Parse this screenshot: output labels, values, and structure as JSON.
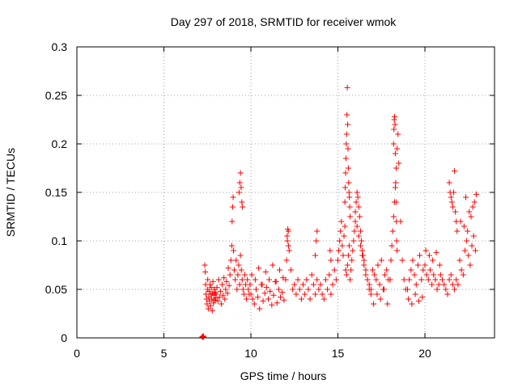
{
  "chart_data": {
    "type": "scatter",
    "title": "Day 297 of 2018, SRMTID for receiver wmok",
    "xlabel": "GPS time / hours",
    "ylabel": "SRMTID / TECUs",
    "xlim": [
      0,
      24
    ],
    "ylim": [
      0,
      0.3
    ],
    "x_ticks": [
      0,
      5,
      10,
      15,
      20
    ],
    "x_tick_labels": [
      "0",
      "5",
      "10",
      "15",
      "20"
    ],
    "y_ticks": [
      0,
      0.05,
      0.1,
      0.15,
      0.2,
      0.25,
      0.3
    ],
    "y_tick_labels": [
      "0",
      "0.05",
      "0.1",
      "0.15",
      "0.2",
      "0.25",
      "0.3"
    ],
    "grid": true,
    "marker": "+",
    "color": "#ff0000",
    "series": [
      {
        "x": [
          7.2,
          7.22,
          7.24,
          7.26,
          7.28,
          7.35,
          7.38,
          7.4,
          7.42,
          7.45,
          7.48,
          7.5,
          7.52,
          7.55,
          7.58,
          7.6,
          7.62,
          7.65,
          7.68,
          7.7,
          7.72,
          7.75,
          7.78,
          7.8,
          7.82,
          7.85,
          7.88,
          7.9,
          7.92,
          7.95,
          7.98,
          8.0,
          8.05,
          8.1,
          8.15,
          8.2,
          8.25,
          8.3,
          8.35,
          8.4,
          8.45,
          8.5,
          8.55,
          8.6,
          8.65,
          8.7,
          8.75,
          8.8,
          8.85,
          8.9,
          8.92,
          8.95,
          8.98,
          9.0,
          9.05,
          9.1,
          9.15,
          9.2,
          9.25,
          9.3,
          9.35,
          9.4,
          9.45,
          9.5,
          9.55,
          9.6,
          9.65,
          9.7,
          9.75,
          9.8,
          9.85,
          9.9,
          9.95,
          9.32,
          9.36,
          9.4,
          9.44,
          9.48,
          9.52,
          10.0,
          10.1,
          10.2,
          10.3,
          10.4,
          10.5,
          10.6,
          10.7,
          10.8,
          10.9,
          11.0,
          11.1,
          11.2,
          11.3,
          11.4,
          11.5,
          11.6,
          11.7,
          11.8,
          11.9,
          10.05,
          10.25,
          10.45,
          10.65,
          10.85,
          11.05,
          11.25,
          11.45,
          11.65,
          11.85,
          12.0,
          12.05,
          12.1,
          12.15,
          12.2,
          12.3,
          12.4,
          12.5,
          12.6,
          12.7,
          12.8,
          12.9,
          13.0,
          13.1,
          13.2,
          13.3,
          13.4,
          13.5,
          13.6,
          13.7,
          13.8,
          13.9,
          12.08,
          12.12,
          12.16,
          14.0,
          14.1,
          14.2,
          14.3,
          14.4,
          14.5,
          14.6,
          14.7,
          14.8,
          14.9,
          13.7,
          13.75,
          13.8,
          14.55,
          14.6,
          15.0,
          15.05,
          15.1,
          15.15,
          15.2,
          15.25,
          15.3,
          15.35,
          15.4,
          15.45,
          15.5,
          15.55,
          15.6,
          15.65,
          15.7,
          15.75,
          15.8,
          15.85,
          15.9,
          15.95,
          15.4,
          15.42,
          15.44,
          15.46,
          15.48,
          15.5,
          15.52,
          15.54,
          15.56,
          15.58,
          15.6,
          15.62,
          15.64,
          15.66,
          15.68,
          15.7,
          16.0,
          16.05,
          16.1,
          16.15,
          16.2,
          16.25,
          16.3,
          16.35,
          16.4,
          16.45,
          16.5,
          16.6,
          16.7,
          16.8,
          16.9,
          16.0,
          16.1,
          16.2,
          16.3,
          16.4,
          16.5,
          16.6,
          16.7,
          16.8,
          16.9,
          17.0,
          17.1,
          17.2,
          17.3,
          17.4,
          17.5,
          17.6,
          17.7,
          17.8,
          17.9,
          17.05,
          17.25,
          17.45,
          17.65,
          17.85,
          18.0,
          18.05,
          18.1,
          18.15,
          18.2,
          18.25,
          18.3,
          18.35,
          18.4,
          18.45,
          18.5,
          18.6,
          18.7,
          18.8,
          18.9,
          18.2,
          18.22,
          18.24,
          18.26,
          18.28,
          18.3,
          18.32,
          18.34,
          18.36,
          18.38,
          18.4,
          19.0,
          19.1,
          19.2,
          19.3,
          19.4,
          19.5,
          19.6,
          19.7,
          19.8,
          19.9,
          19.05,
          19.25,
          19.45,
          19.65,
          19.85,
          20.0,
          20.1,
          20.2,
          20.3,
          20.4,
          20.5,
          20.6,
          20.7,
          20.8,
          20.9,
          20.05,
          20.25,
          20.45,
          20.65,
          20.85,
          21.0,
          21.1,
          21.2,
          21.3,
          21.4,
          21.5,
          21.6,
          21.7,
          21.8,
          21.9,
          21.4,
          21.45,
          21.5,
          21.55,
          21.6,
          21.65,
          21.7,
          21.75,
          21.8,
          21.85,
          22.0,
          22.1,
          22.2,
          22.3,
          22.4,
          22.5,
          22.6,
          22.7,
          22.8,
          22.9,
          22.05,
          22.25,
          22.45,
          22.65,
          22.85,
          22.35,
          22.55,
          22.75,
          22.95
        ],
        "y": [
          0.001,
          0.001,
          0.001,
          0.002,
          0.001,
          0.075,
          0.068,
          0.055,
          0.045,
          0.04,
          0.035,
          0.05,
          0.06,
          0.03,
          0.042,
          0.048,
          0.038,
          0.055,
          0.033,
          0.045,
          0.052,
          0.04,
          0.028,
          0.046,
          0.058,
          0.036,
          0.044,
          0.05,
          0.039,
          0.047,
          0.041,
          0.045,
          0.052,
          0.038,
          0.06,
          0.042,
          0.048,
          0.035,
          0.055,
          0.044,
          0.062,
          0.04,
          0.05,
          0.058,
          0.046,
          0.072,
          0.054,
          0.065,
          0.08,
          0.095,
          0.12,
          0.135,
          0.145,
          0.09,
          0.07,
          0.06,
          0.08,
          0.05,
          0.065,
          0.075,
          0.055,
          0.085,
          0.07,
          0.06,
          0.05,
          0.045,
          0.065,
          0.055,
          0.04,
          0.06,
          0.05,
          0.045,
          0.055,
          0.15,
          0.16,
          0.17,
          0.155,
          0.14,
          0.135,
          0.045,
          0.04,
          0.035,
          0.05,
          0.042,
          0.03,
          0.055,
          0.038,
          0.046,
          0.052,
          0.04,
          0.048,
          0.034,
          0.044,
          0.058,
          0.036,
          0.05,
          0.042,
          0.047,
          0.039,
          0.065,
          0.06,
          0.072,
          0.055,
          0.068,
          0.06,
          0.075,
          0.058,
          0.07,
          0.062,
          0.06,
          0.08,
          0.1,
          0.11,
          0.09,
          0.07,
          0.05,
          0.055,
          0.045,
          0.06,
          0.05,
          0.04,
          0.055,
          0.045,
          0.06,
          0.05,
          0.04,
          0.065,
          0.055,
          0.045,
          0.06,
          0.05,
          0.105,
          0.112,
          0.095,
          0.055,
          0.045,
          0.04,
          0.06,
          0.05,
          0.065,
          0.045,
          0.055,
          0.07,
          0.06,
          0.085,
          0.1,
          0.11,
          0.09,
          0.08,
          0.08,
          0.09,
          0.1,
          0.11,
          0.12,
          0.095,
          0.085,
          0.105,
          0.115,
          0.07,
          0.065,
          0.075,
          0.085,
          0.095,
          0.06,
          0.07,
          0.08,
          0.09,
          0.1,
          0.11,
          0.14,
          0.155,
          0.17,
          0.185,
          0.2,
          0.21,
          0.23,
          0.258,
          0.22,
          0.195,
          0.175,
          0.16,
          0.15,
          0.145,
          0.135,
          0.125,
          0.13,
          0.14,
          0.15,
          0.145,
          0.135,
          0.125,
          0.11,
          0.1,
          0.09,
          0.085,
          0.08,
          0.07,
          0.06,
          0.055,
          0.05,
          0.12,
          0.115,
          0.105,
          0.095,
          0.085,
          0.075,
          0.065,
          0.06,
          0.05,
          0.045,
          0.07,
          0.065,
          0.06,
          0.075,
          0.055,
          0.08,
          0.05,
          0.065,
          0.07,
          0.06,
          0.035,
          0.045,
          0.04,
          0.05,
          0.035,
          0.06,
          0.08,
          0.095,
          0.11,
          0.125,
          0.14,
          0.155,
          0.175,
          0.195,
          0.21,
          0.18,
          0.12,
          0.08,
          0.06,
          0.05,
          0.2,
          0.215,
          0.225,
          0.228,
          0.22,
          0.19,
          0.16,
          0.14,
          0.12,
          0.1,
          0.09,
          0.05,
          0.06,
          0.07,
          0.08,
          0.065,
          0.055,
          0.075,
          0.085,
          0.06,
          0.07,
          0.04,
          0.035,
          0.045,
          0.038,
          0.042,
          0.075,
          0.065,
          0.06,
          0.07,
          0.055,
          0.065,
          0.06,
          0.05,
          0.055,
          0.065,
          0.09,
          0.085,
          0.08,
          0.088,
          0.075,
          0.06,
          0.055,
          0.05,
          0.045,
          0.06,
          0.065,
          0.055,
          0.05,
          0.06,
          0.055,
          0.16,
          0.15,
          0.145,
          0.14,
          0.135,
          0.15,
          0.172,
          0.13,
          0.12,
          0.11,
          0.08,
          0.07,
          0.065,
          0.09,
          0.1,
          0.085,
          0.075,
          0.095,
          0.105,
          0.09,
          0.12,
          0.115,
          0.11,
          0.125,
          0.14,
          0.145,
          0.13,
          0.135,
          0.148
        ]
      }
    ]
  }
}
